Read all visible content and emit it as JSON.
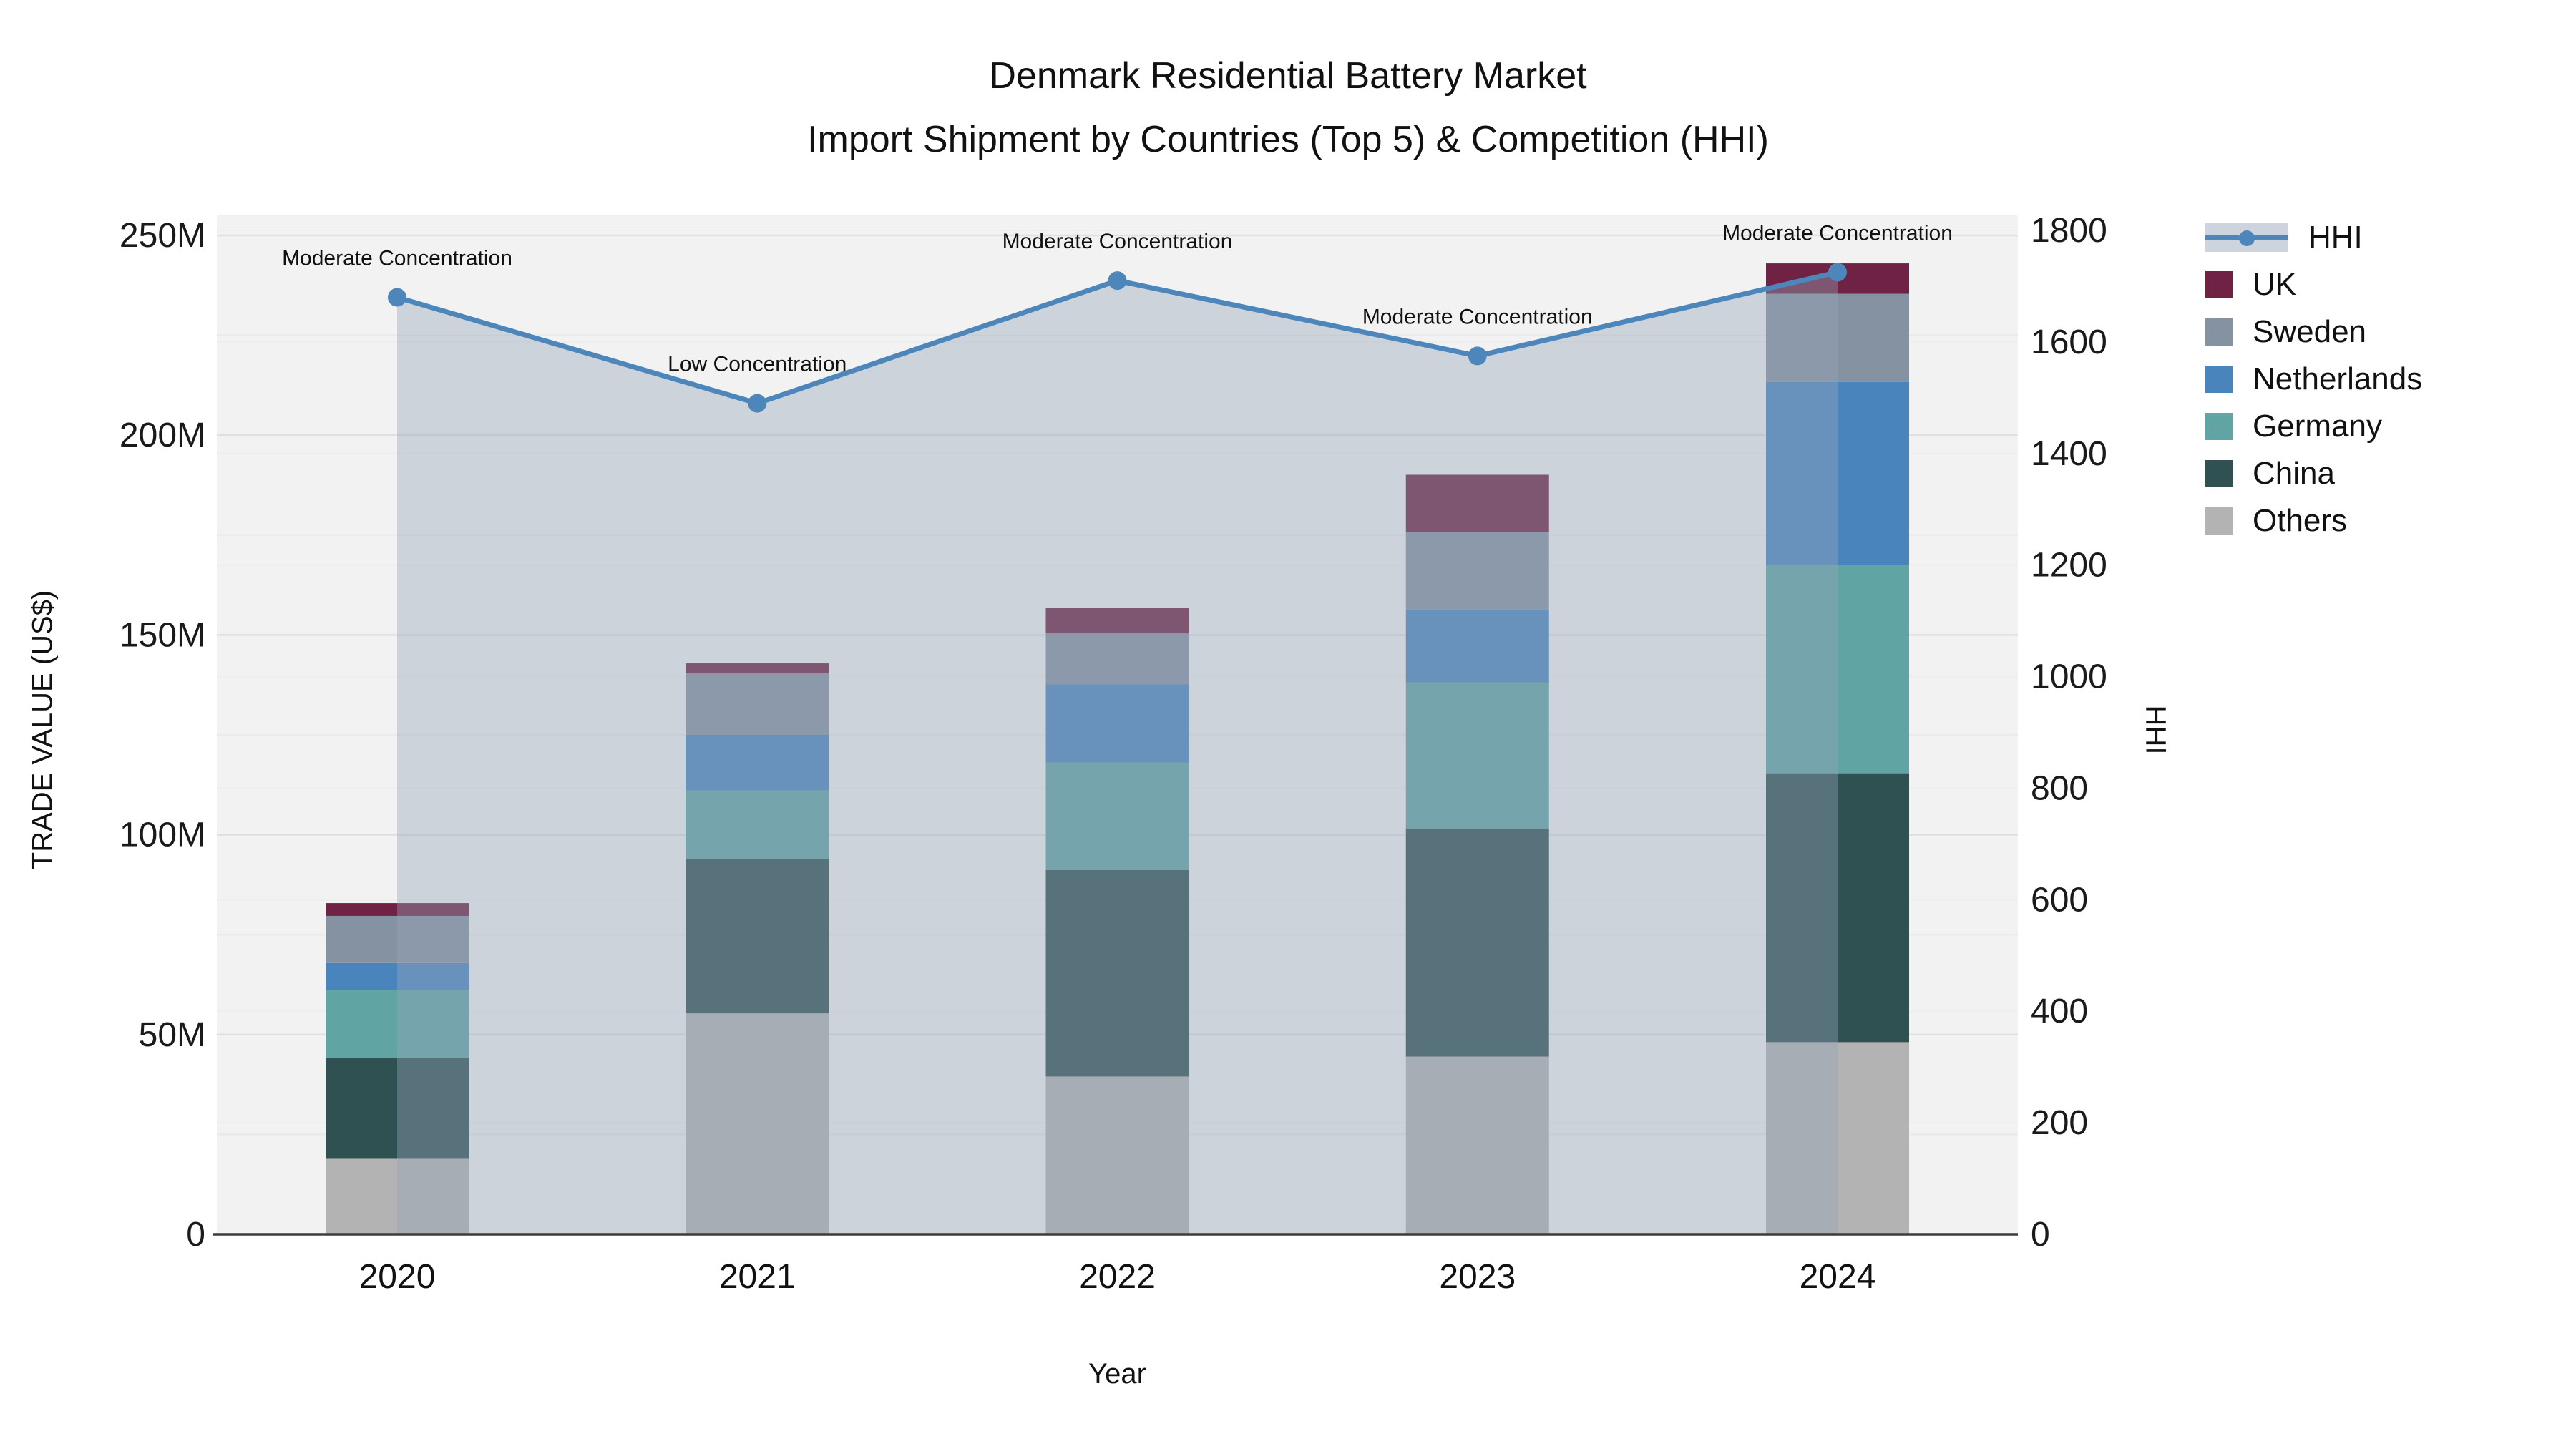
{
  "title": {
    "line1": "Denmark Residential Battery Market",
    "line2": "Import Shipment by Countries (Top 5) & Competition (HHI)"
  },
  "axes": {
    "y_left": {
      "label": "TRADE VALUE (US$)",
      "ticks": [
        "0",
        "50M",
        "100M",
        "150M",
        "200M",
        "250M"
      ],
      "range": [
        0,
        250
      ]
    },
    "y_right": {
      "label": "HHI",
      "ticks": [
        "0",
        "200",
        "400",
        "600",
        "800",
        "1000",
        "1200",
        "1400",
        "1600",
        "1800"
      ],
      "range": [
        0,
        1800
      ]
    },
    "x": {
      "label": "Year",
      "categories": [
        "2020",
        "2021",
        "2022",
        "2023",
        "2024"
      ]
    }
  },
  "legend": [
    {
      "label": "HHI",
      "type": "line",
      "color": "#4d86ba",
      "band": "#cdd4dd"
    },
    {
      "label": "UK",
      "type": "box",
      "color": "#6f2243"
    },
    {
      "label": "Sweden",
      "type": "box",
      "color": "#8492a1"
    },
    {
      "label": "Netherlands",
      "type": "box",
      "color": "#4a84bd"
    },
    {
      "label": "Germany",
      "type": "box",
      "color": "#60a4a3"
    },
    {
      "label": "China",
      "type": "box",
      "color": "#2f5152"
    },
    {
      "label": "Others",
      "type": "box",
      "color": "#b3b3b3"
    }
  ],
  "chart_data": {
    "type": "combo (stacked bar + line with area fill)",
    "x": [
      "2020",
      "2021",
      "2022",
      "2023",
      "2024"
    ],
    "bar_value_unit": "million US$",
    "series": [
      {
        "name": "Others",
        "color": "#b3b3b3",
        "values": [
          18.9,
          55.3,
          39.5,
          44.5,
          48.1
        ]
      },
      {
        "name": "China",
        "color": "#2f5152",
        "values": [
          25.3,
          38.6,
          51.7,
          57.1,
          67.3
        ]
      },
      {
        "name": "Germany",
        "color": "#60a4a3",
        "values": [
          17.0,
          17.2,
          26.9,
          36.5,
          52.1
        ]
      },
      {
        "name": "Netherlands",
        "color": "#4a84bd",
        "values": [
          6.7,
          13.9,
          19.6,
          18.3,
          45.8
        ]
      },
      {
        "name": "Sweden",
        "color": "#8492a1",
        "values": [
          11.8,
          15.4,
          12.7,
          19.4,
          22.1
        ]
      },
      {
        "name": "UK",
        "color": "#6f2243",
        "values": [
          3.2,
          2.5,
          6.3,
          14.3,
          7.6
        ]
      }
    ],
    "stack_totals": [
      82.9,
      142.9,
      156.7,
      190.1,
      243.0
    ],
    "hhi_line": {
      "name": "HHI",
      "color": "#4d86ba",
      "area_fill": "rgba(150,165,185,0.40)",
      "values": [
        1680,
        1490,
        1710,
        1575,
        1725
      ]
    },
    "annotations": [
      {
        "x": "2020",
        "text": "Moderate Concentration"
      },
      {
        "x": "2021",
        "text": "Low Concentration"
      },
      {
        "x": "2022",
        "text": "Moderate Concentration"
      },
      {
        "x": "2023",
        "text": "Moderate Concentration"
      },
      {
        "x": "2024",
        "text": "Moderate Concentration"
      }
    ],
    "title": "Denmark Residential Battery Market — Import Shipment by Countries (Top 5) & Competition (HHI)",
    "xlabel": "Year",
    "ylabel_left": "TRADE VALUE (US$)",
    "ylabel_right": "HHI",
    "ylim_left": [
      0,
      250
    ],
    "ylim_right": [
      0,
      1800
    ],
    "grid": true,
    "legend_position": "right",
    "plot_background": "#f2f2f2",
    "axis_line_color": "#3c3c3c"
  }
}
